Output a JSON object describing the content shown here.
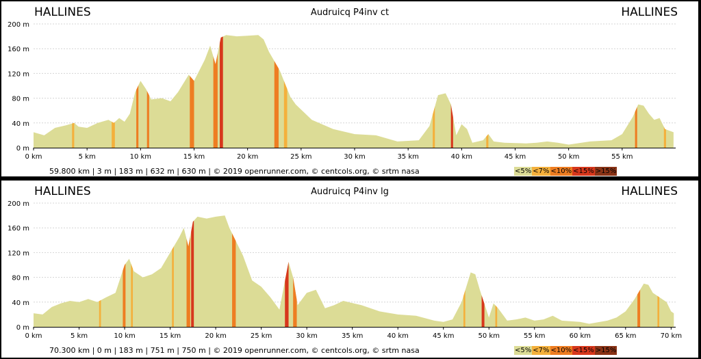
{
  "colors": {
    "lt5": "#dcdc96",
    "lt7": "#f4b03c",
    "lt10": "#ee7d22",
    "lt15": "#d7371c",
    "gt15": "#8a3316",
    "grid": "#d4d4d4",
    "axis": "#000000"
  },
  "legend": [
    "<5%",
    "<7%",
    "<10%",
    "<15%",
    ">15%"
  ],
  "charts": [
    {
      "start_label": "HALLINES",
      "end_label": "HALLINES",
      "route_name": "Audruicq P4inv ct",
      "stats": "59.800 km |      3 m |      183 m |      632 m |      630 m | © 2019 openrunner.com, © centcols.org, © srtm nasa",
      "chart_data": {
        "type": "area",
        "title": "Audruicq P4inv ct",
        "xlabel": "",
        "ylabel": "",
        "xlim": [
          0,
          60
        ],
        "ylim": [
          0,
          200
        ],
        "x_ticks": [
          "0 km",
          "5 km",
          "10 km",
          "15 km",
          "20 km",
          "25 km",
          "30 km",
          "35 km",
          "40 km",
          "45 km",
          "50 km",
          "55 km"
        ],
        "y_ticks": [
          "0 m",
          "40 m",
          "80 m",
          "120 m",
          "160 m",
          "200 m"
        ],
        "grid": true,
        "profile": [
          [
            0,
            25
          ],
          [
            1,
            20
          ],
          [
            2,
            32
          ],
          [
            3,
            36
          ],
          [
            3.8,
            40
          ],
          [
            4.2,
            34
          ],
          [
            5,
            32
          ],
          [
            6,
            40
          ],
          [
            7,
            45
          ],
          [
            7.5,
            40
          ],
          [
            8,
            48
          ],
          [
            8.5,
            42
          ],
          [
            9,
            55
          ],
          [
            9.5,
            90
          ],
          [
            10,
            108
          ],
          [
            10.5,
            95
          ],
          [
            11,
            78
          ],
          [
            12,
            80
          ],
          [
            12.8,
            75
          ],
          [
            13.5,
            90
          ],
          [
            14.5,
            118
          ],
          [
            15,
            108
          ],
          [
            16,
            142
          ],
          [
            16.5,
            165
          ],
          [
            17,
            135
          ],
          [
            17.5,
            178
          ],
          [
            18,
            182
          ],
          [
            19,
            180
          ],
          [
            20,
            181
          ],
          [
            21,
            182
          ],
          [
            21.5,
            175
          ],
          [
            22,
            155
          ],
          [
            23,
            125
          ],
          [
            24,
            82
          ],
          [
            24.5,
            70
          ],
          [
            26,
            45
          ],
          [
            28,
            30
          ],
          [
            30,
            22
          ],
          [
            32,
            20
          ],
          [
            34,
            10
          ],
          [
            36,
            12
          ],
          [
            37,
            35
          ],
          [
            37.8,
            85
          ],
          [
            38.5,
            88
          ],
          [
            39,
            70
          ],
          [
            39.5,
            20
          ],
          [
            40,
            38
          ],
          [
            40.5,
            30
          ],
          [
            41,
            8
          ],
          [
            42,
            12
          ],
          [
            42.5,
            22
          ],
          [
            43,
            10
          ],
          [
            44,
            8
          ],
          [
            46,
            7
          ],
          [
            47,
            8
          ],
          [
            48,
            10
          ],
          [
            49,
            8
          ],
          [
            50,
            5
          ],
          [
            52,
            10
          ],
          [
            54,
            12
          ],
          [
            55,
            22
          ],
          [
            56,
            50
          ],
          [
            56.5,
            70
          ],
          [
            57,
            68
          ],
          [
            57.5,
            55
          ],
          [
            58,
            45
          ],
          [
            58.5,
            48
          ],
          [
            59,
            30
          ],
          [
            59.8,
            25
          ]
        ],
        "grade_bands": [
          {
            "from": 3.6,
            "to": 3.8,
            "grade": "<7%"
          },
          {
            "from": 7.3,
            "to": 7.6,
            "grade": "<7%"
          },
          {
            "from": 9.6,
            "to": 9.8,
            "grade": "<10%"
          },
          {
            "from": 10.6,
            "to": 10.8,
            "grade": "<10%"
          },
          {
            "from": 14.6,
            "to": 15.0,
            "grade": "<10%"
          },
          {
            "from": 16.8,
            "to": 17.2,
            "grade": "<10%"
          },
          {
            "from": 17.4,
            "to": 17.7,
            "grade": "<15%"
          },
          {
            "from": 22.5,
            "to": 22.9,
            "grade": "<10%"
          },
          {
            "from": 23.4,
            "to": 23.7,
            "grade": "<7%"
          },
          {
            "from": 37.3,
            "to": 37.5,
            "grade": "<7%"
          },
          {
            "from": 39.0,
            "to": 39.2,
            "grade": "<15%"
          },
          {
            "from": 42.3,
            "to": 42.5,
            "grade": "<7%"
          },
          {
            "from": 56.2,
            "to": 56.4,
            "grade": "<10%"
          },
          {
            "from": 58.9,
            "to": 59.1,
            "grade": "<7%"
          }
        ]
      }
    },
    {
      "start_label": "HALLINES",
      "end_label": "HALLINES",
      "route_name": "Audruicq P4inv lg",
      "stats": "70.300 km |      0 m |      183 m |      751 m |      750 m | © 2019 openrunner.com, © centcols.org, © srtm nasa",
      "chart_data": {
        "type": "area",
        "title": "Audruicq P4inv lg",
        "xlabel": "",
        "ylabel": "",
        "xlim": [
          0,
          70.5
        ],
        "ylim": [
          0,
          200
        ],
        "x_ticks": [
          "0 km",
          "5 km",
          "10 km",
          "15 km",
          "20 km",
          "25 km",
          "30 km",
          "35 km",
          "40 km",
          "45 km",
          "50 km",
          "55 km",
          "60 km",
          "65 km",
          "70 km"
        ],
        "y_ticks": [
          "0 m",
          "40 m",
          "80 m",
          "120 m",
          "160 m",
          "200 m"
        ],
        "grid": true,
        "profile": [
          [
            0,
            22
          ],
          [
            1,
            20
          ],
          [
            2,
            32
          ],
          [
            3,
            38
          ],
          [
            4,
            42
          ],
          [
            5,
            40
          ],
          [
            6,
            45
          ],
          [
            7,
            40
          ],
          [
            8,
            48
          ],
          [
            9,
            55
          ],
          [
            10,
            100
          ],
          [
            10.5,
            110
          ],
          [
            11,
            90
          ],
          [
            12,
            80
          ],
          [
            13,
            85
          ],
          [
            14,
            95
          ],
          [
            15,
            120
          ],
          [
            16,
            145
          ],
          [
            16.5,
            160
          ],
          [
            17,
            130
          ],
          [
            17.5,
            170
          ],
          [
            18,
            178
          ],
          [
            19,
            175
          ],
          [
            20,
            178
          ],
          [
            21,
            180
          ],
          [
            21.5,
            160
          ],
          [
            22,
            145
          ],
          [
            23,
            115
          ],
          [
            24,
            75
          ],
          [
            25,
            65
          ],
          [
            26,
            48
          ],
          [
            27,
            28
          ],
          [
            28,
            105
          ],
          [
            28.5,
            80
          ],
          [
            29,
            35
          ],
          [
            30,
            55
          ],
          [
            31,
            60
          ],
          [
            32,
            30
          ],
          [
            33,
            35
          ],
          [
            34,
            42
          ],
          [
            36,
            35
          ],
          [
            38,
            25
          ],
          [
            40,
            20
          ],
          [
            42,
            18
          ],
          [
            44,
            10
          ],
          [
            45,
            8
          ],
          [
            46,
            12
          ],
          [
            47,
            40
          ],
          [
            48,
            88
          ],
          [
            48.5,
            85
          ],
          [
            49,
            60
          ],
          [
            50,
            15
          ],
          [
            50.5,
            38
          ],
          [
            51,
            30
          ],
          [
            52,
            10
          ],
          [
            53,
            12
          ],
          [
            54,
            15
          ],
          [
            55,
            10
          ],
          [
            56,
            12
          ],
          [
            57,
            18
          ],
          [
            58,
            10
          ],
          [
            60,
            8
          ],
          [
            61,
            5
          ],
          [
            63,
            10
          ],
          [
            64,
            15
          ],
          [
            65,
            25
          ],
          [
            66,
            45
          ],
          [
            67,
            70
          ],
          [
            67.5,
            68
          ],
          [
            68,
            55
          ],
          [
            69,
            45
          ],
          [
            69.5,
            40
          ],
          [
            70,
            25
          ],
          [
            70.3,
            22
          ]
        ],
        "grade_bands": [
          {
            "from": 7.2,
            "to": 7.4,
            "grade": "<7%"
          },
          {
            "from": 9.8,
            "to": 10.1,
            "grade": "<10%"
          },
          {
            "from": 10.7,
            "to": 10.9,
            "grade": "<7%"
          },
          {
            "from": 15.2,
            "to": 15.4,
            "grade": "<7%"
          },
          {
            "from": 16.8,
            "to": 17.2,
            "grade": "<10%"
          },
          {
            "from": 17.3,
            "to": 17.6,
            "grade": "<15%"
          },
          {
            "from": 21.8,
            "to": 22.2,
            "grade": "<10%"
          },
          {
            "from": 27.6,
            "to": 28.0,
            "grade": "<15%"
          },
          {
            "from": 28.5,
            "to": 28.9,
            "grade": "<10%"
          },
          {
            "from": 47.2,
            "to": 47.4,
            "grade": "<7%"
          },
          {
            "from": 49.2,
            "to": 49.5,
            "grade": "<15%"
          },
          {
            "from": 50.7,
            "to": 50.9,
            "grade": "<7%"
          },
          {
            "from": 66.3,
            "to": 66.6,
            "grade": "<10%"
          },
          {
            "from": 68.5,
            "to": 68.7,
            "grade": "<7%"
          }
        ]
      }
    }
  ]
}
